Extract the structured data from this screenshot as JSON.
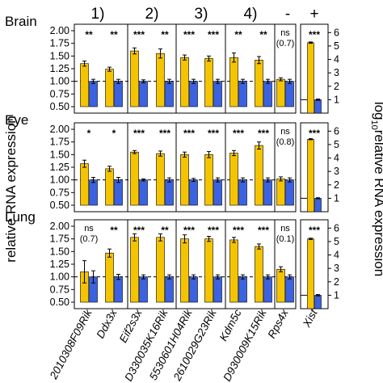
{
  "groups": [
    "1)",
    "2)",
    "3)",
    "4)",
    "-",
    "+"
  ],
  "genes": [
    "2010308F09Rik",
    "Ddx3x",
    "Eif2s3x",
    "D330035K16Rik",
    "5530601H04Rik",
    "2610029G23Rik",
    "Kdm5c",
    "D930009K15Rik",
    "Rps4x",
    "Xist"
  ],
  "y_label_left": "relative RNA expression",
  "y_label_right": "log10relative RNA expression",
  "chart_data": {
    "type": "bar",
    "colors": {
      "yellow": "#f5c400",
      "blue": "#3b62e0"
    },
    "left_axis": {
      "ylim": [
        0.5,
        2.0
      ],
      "ticks": [
        "0.50",
        "0.75",
        "1.00",
        "1.25",
        "1.50",
        "1.75",
        "2.00"
      ]
    },
    "right_axis": {
      "ylim": [
        0,
        6.5
      ],
      "ticks": [
        "1",
        "2",
        "3",
        "4",
        "5",
        "6"
      ]
    },
    "panels": [
      {
        "tissue": "Brain",
        "genes": [
          {
            "gene": "2010308F09Rik",
            "yellow": 1.35,
            "yellow_err": 0.05,
            "blue": 1.0,
            "blue_err": 0.04,
            "sig": "**"
          },
          {
            "gene": "Ddx3x",
            "yellow": 1.24,
            "yellow_err": 0.04,
            "blue": 1.0,
            "blue_err": 0.04,
            "sig": "**"
          },
          {
            "gene": "Eif2s3x",
            "yellow": 1.6,
            "yellow_err": 0.06,
            "blue": 1.0,
            "blue_err": 0.03,
            "sig": "***"
          },
          {
            "gene": "D330035K16Rik",
            "yellow": 1.55,
            "yellow_err": 0.09,
            "blue": 1.0,
            "blue_err": 0.04,
            "sig": "**"
          },
          {
            "gene": "5530601H04Rik",
            "yellow": 1.47,
            "yellow_err": 0.05,
            "blue": 1.0,
            "blue_err": 0.04,
            "sig": "***"
          },
          {
            "gene": "2610029G23Rik",
            "yellow": 1.45,
            "yellow_err": 0.05,
            "blue": 1.0,
            "blue_err": 0.04,
            "sig": "***"
          },
          {
            "gene": "Kdm5c",
            "yellow": 1.47,
            "yellow_err": 0.09,
            "blue": 1.0,
            "blue_err": 0.04,
            "sig": "**"
          },
          {
            "gene": "D930009K15Rik",
            "yellow": 1.42,
            "yellow_err": 0.07,
            "blue": 1.0,
            "blue_err": 0.04,
            "sig": "**"
          },
          {
            "gene": "Rps4x",
            "yellow": 1.04,
            "yellow_err": 0.03,
            "blue": 1.0,
            "blue_err": 0.04,
            "sig": "ns",
            "p": "(0.7)"
          },
          {
            "gene": "Xist",
            "yellow": 5.25,
            "yellow_err": 0.05,
            "blue": 1.0,
            "blue_err": 0.05,
            "sig": "***"
          }
        ]
      },
      {
        "tissue": "Eye",
        "genes": [
          {
            "gene": "2010308F09Rik",
            "yellow": 1.32,
            "yellow_err": 0.07,
            "blue": 1.0,
            "blue_err": 0.05,
            "sig": "*"
          },
          {
            "gene": "Ddx3x",
            "yellow": 1.22,
            "yellow_err": 0.05,
            "blue": 1.0,
            "blue_err": 0.05,
            "sig": "*"
          },
          {
            "gene": "Eif2s3x",
            "yellow": 1.55,
            "yellow_err": 0.03,
            "blue": 1.0,
            "blue_err": 0.02,
            "sig": "***"
          },
          {
            "gene": "D330035K16Rik",
            "yellow": 1.52,
            "yellow_err": 0.05,
            "blue": 1.0,
            "blue_err": 0.04,
            "sig": "***"
          },
          {
            "gene": "5530601H04Rik",
            "yellow": 1.5,
            "yellow_err": 0.05,
            "blue": 1.0,
            "blue_err": 0.03,
            "sig": "***"
          },
          {
            "gene": "2610029G23Rik",
            "yellow": 1.5,
            "yellow_err": 0.06,
            "blue": 1.0,
            "blue_err": 0.04,
            "sig": "***"
          },
          {
            "gene": "Kdm5c",
            "yellow": 1.53,
            "yellow_err": 0.05,
            "blue": 1.0,
            "blue_err": 0.04,
            "sig": "***"
          },
          {
            "gene": "D930009K15Rik",
            "yellow": 1.68,
            "yellow_err": 0.07,
            "blue": 1.0,
            "blue_err": 0.04,
            "sig": "***"
          },
          {
            "gene": "Rps4x",
            "yellow": 1.02,
            "yellow_err": 0.04,
            "blue": 1.0,
            "blue_err": 0.04,
            "sig": "ns",
            "p": "(0.8)"
          },
          {
            "gene": "Xist",
            "yellow": 5.4,
            "yellow_err": 0.04,
            "blue": 1.0,
            "blue_err": 0.04,
            "sig": "***"
          }
        ]
      },
      {
        "tissue": "Lung",
        "genes": [
          {
            "gene": "2010308F09Rik",
            "yellow": 1.1,
            "yellow_err": 0.22,
            "blue": 1.0,
            "blue_err": 0.12,
            "sig": "ns",
            "p": "(0.7)"
          },
          {
            "gene": "Ddx3x",
            "yellow": 1.47,
            "yellow_err": 0.08,
            "blue": 1.0,
            "blue_err": 0.05,
            "sig": "**"
          },
          {
            "gene": "Eif2s3x",
            "yellow": 1.78,
            "yellow_err": 0.07,
            "blue": 1.0,
            "blue_err": 0.04,
            "sig": "***"
          },
          {
            "gene": "D330035K16Rik",
            "yellow": 1.78,
            "yellow_err": 0.07,
            "blue": 1.0,
            "blue_err": 0.04,
            "sig": "**"
          },
          {
            "gene": "5530601H04Rik",
            "yellow": 1.75,
            "yellow_err": 0.08,
            "blue": 1.0,
            "blue_err": 0.04,
            "sig": "***"
          },
          {
            "gene": "2610029G23Rik",
            "yellow": 1.75,
            "yellow_err": 0.05,
            "blue": 1.0,
            "blue_err": 0.04,
            "sig": "***"
          },
          {
            "gene": "Kdm5c",
            "yellow": 1.73,
            "yellow_err": 0.05,
            "blue": 1.0,
            "blue_err": 0.04,
            "sig": "***"
          },
          {
            "gene": "D930009K15Rik",
            "yellow": 1.6,
            "yellow_err": 0.05,
            "blue": 1.0,
            "blue_err": 0.04,
            "sig": "***"
          },
          {
            "gene": "Rps4x",
            "yellow": 1.15,
            "yellow_err": 0.05,
            "blue": 1.0,
            "blue_err": 0.04,
            "sig": "ns",
            "p": "(0.1)"
          },
          {
            "gene": "Xist",
            "yellow": 5.2,
            "yellow_err": 0.05,
            "blue": 1.0,
            "blue_err": 0.05,
            "sig": "***"
          }
        ]
      }
    ]
  }
}
